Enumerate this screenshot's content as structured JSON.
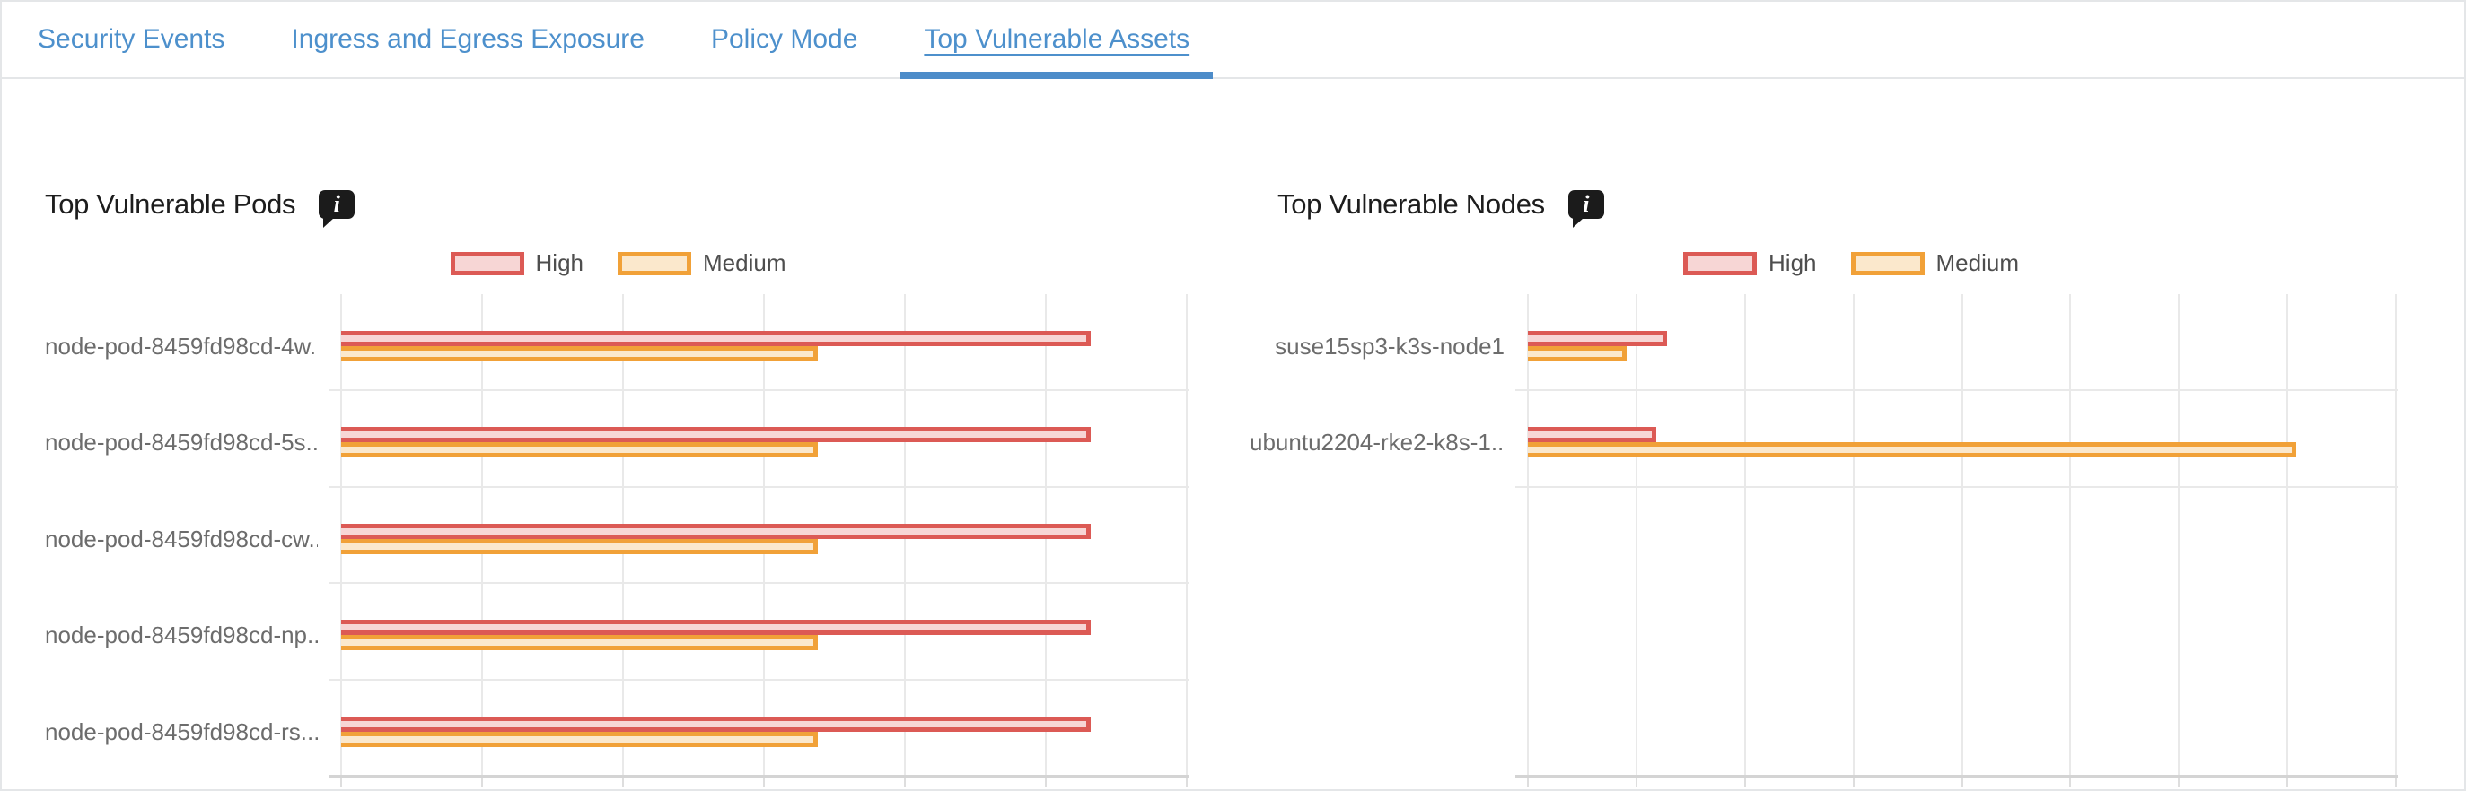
{
  "tab_bar": {
    "tabs": [
      {
        "label": "Security Events",
        "active": false
      },
      {
        "label": "Ingress and Egress Exposure",
        "active": false
      },
      {
        "label": "Policy Mode",
        "active": false
      },
      {
        "label": "Top Vulnerable Assets",
        "active": true
      }
    ]
  },
  "colors": {
    "tab_blue": "#4d90cc",
    "active_underline": "#4d8cc9",
    "high_border": "#dc5a55",
    "high_fill": "#f7d6d5",
    "medium_border": "#f1a138",
    "medium_fill": "#fbe8cc",
    "gridline": "#e9e9e9",
    "axis_line": "#d4d4d4",
    "info_icon_bg": "#1b1b1b"
  },
  "chart_data": [
    {
      "type": "bar",
      "orientation": "horizontal",
      "title": "Top Vulnerable Pods",
      "info_icon": "info-bubble-icon",
      "legend_position": "top",
      "grid": true,
      "legend": [
        {
          "label": "High",
          "border": "#dc5a55",
          "fill": "#f7d6d5"
        },
        {
          "label": "Medium",
          "border": "#f1a138",
          "fill": "#fbe8cc"
        }
      ],
      "categories": [
        "node-pod-8459fd98cd-4w...",
        "node-pod-8459fd98cd-5s...",
        "node-pod-8459fd98cd-cw...",
        "node-pod-8459fd98cd-np...",
        "node-pod-8459fd98cd-rs..."
      ],
      "series": [
        {
          "name": "High",
          "values": [
            2660,
            2660,
            2660,
            2660,
            2660
          ]
        },
        {
          "name": "Medium",
          "values": [
            1690,
            1690,
            1690,
            1690,
            1690
          ]
        }
      ],
      "xlim": [
        0,
        3000
      ],
      "xticks": [
        0,
        500,
        1000,
        1500,
        2000,
        2500,
        3000
      ]
    },
    {
      "type": "bar",
      "orientation": "horizontal",
      "title": "Top Vulnerable Nodes",
      "info_icon": "info-bubble-icon",
      "legend_position": "top",
      "grid": true,
      "legend": [
        {
          "label": "High",
          "border": "#dc5a55",
          "fill": "#f7d6d5"
        },
        {
          "label": "Medium",
          "border": "#f1a138",
          "fill": "#fbe8cc"
        }
      ],
      "categories": [
        "suse15sp3-k3s-node1",
        "ubuntu2204-rke2-k8s-1...."
      ],
      "series": [
        {
          "name": "High",
          "values": [
            640,
            590
          ]
        },
        {
          "name": "Medium",
          "values": [
            455,
            3540
          ]
        }
      ],
      "xlim": [
        0,
        4000
      ],
      "xticks": [
        0,
        500,
        1000,
        1500,
        2000,
        2500,
        3000,
        3500,
        4000
      ]
    }
  ]
}
